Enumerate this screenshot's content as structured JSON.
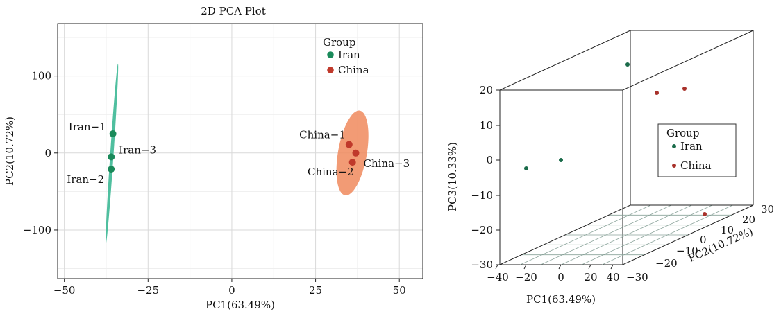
{
  "chart_data": [
    {
      "type": "scatter",
      "title": "2D PCA Plot",
      "xlabel": "PC1(63.49%)",
      "ylabel": "PC2(10.72%)",
      "xlim": [
        -52,
        57
      ],
      "ylim": [
        -163,
        168
      ],
      "x_ticks": [
        -50,
        -25,
        0,
        25,
        50
      ],
      "y_ticks": [
        -100,
        0,
        100
      ],
      "x_tick_labels": [
        "−50",
        "−25",
        "0",
        "25",
        "50"
      ],
      "y_tick_labels": [
        "−100",
        "0",
        "100"
      ],
      "grid": true,
      "legend": {
        "title": "Group",
        "position": "top-right",
        "entries": [
          "Iran",
          "China"
        ]
      },
      "colors": {
        "Iran": "#1a8a5a",
        "China": "#c0392b",
        "Iran_ellipse": "#4fbf9f",
        "China_ellipse": "#f08a5d"
      },
      "series": [
        {
          "name": "Iran",
          "points": [
            {
              "label": "Iran−1",
              "x": -35.5,
              "y": 25
            },
            {
              "label": "Iran−2",
              "x": -36.0,
              "y": -21
            },
            {
              "label": "Iran−3",
              "x": -36.0,
              "y": -5
            }
          ]
        },
        {
          "name": "China",
          "points": [
            {
              "label": "China−1",
              "x": 35.0,
              "y": 11
            },
            {
              "label": "China−2",
              "x": 36.0,
              "y": -12
            },
            {
              "label": "China−3",
              "x": 37.0,
              "y": 0
            }
          ]
        }
      ],
      "ellipses": [
        {
          "group": "Iran",
          "cx": -35.8,
          "cy": -1,
          "half_len_x": 1.8,
          "half_len_y": 117,
          "width": 0.5
        },
        {
          "group": "China",
          "cx": 36,
          "cy": 0,
          "half_len_x": 2.2,
          "half_len_y": 55,
          "width": 4.3
        }
      ]
    },
    {
      "type": "scatter",
      "projection": "3d",
      "xlabel": "PC1(63.49%)",
      "ylabel": "PC2(10.72%)",
      "zlabel": "PC3(10.33%)",
      "x_tick_labels": [
        "−40",
        "−20",
        "0",
        "20",
        "40"
      ],
      "y_tick_labels": [
        "−30",
        "−20",
        "−10",
        "0",
        "10",
        "20",
        "30"
      ],
      "z_tick_labels": [
        "20",
        "10",
        "0",
        "−10",
        "−20",
        "−30"
      ],
      "legend": {
        "title": "Group",
        "position": "center-right",
        "entries": [
          "Iran",
          "China"
        ]
      },
      "series": [
        {
          "name": "Iran",
          "points": [
            {
              "x": -36,
              "y": -21,
              "z": 0
            },
            {
              "x": -35.5,
              "y": 25,
              "z": 21
            },
            {
              "x": -36,
              "y": -5,
              "z": 3
            }
          ]
        },
        {
          "name": "China",
          "points": [
            {
              "x": 35,
              "y": 11,
              "z": 16
            },
            {
              "x": 36,
              "y": -12,
              "z": 16
            },
            {
              "x": 37,
              "y": 0,
              "z": -30
            }
          ]
        }
      ]
    }
  ]
}
